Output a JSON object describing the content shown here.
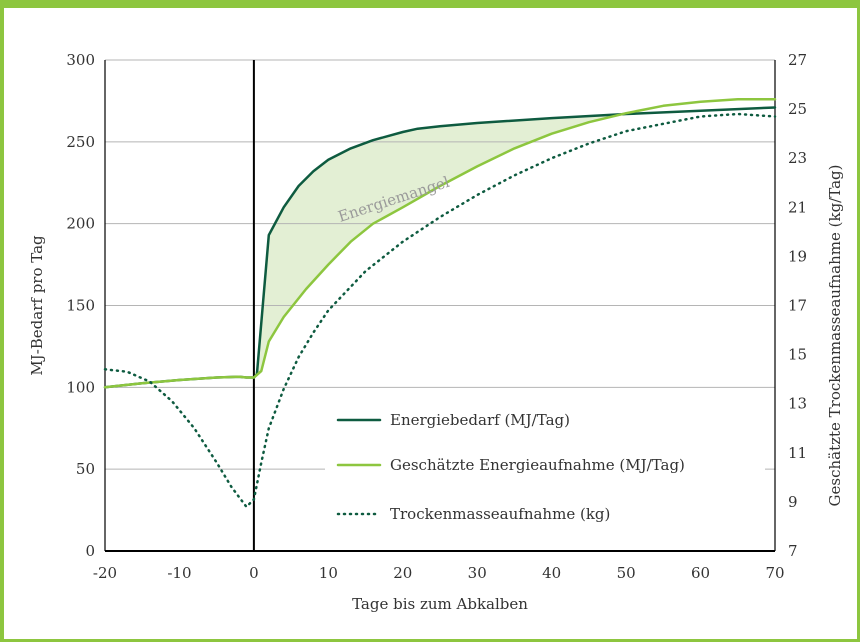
{
  "colors": {
    "frame": "#8dc63f",
    "energy_demand": "#0e5b40",
    "energy_intake": "#8dc63f",
    "dry_matter": "#0e5b40",
    "deficit_fill": "#e3efd4",
    "grid": "#b5b5b5",
    "axis": "#000000"
  },
  "chart_data": {
    "type": "line",
    "xlabel": "Tage bis zum Abkalben",
    "ylabel": "MJ-Bedarf pro Tag",
    "y2label": "Geschätzte Trockenmasseaufnahme (kg/Tag)",
    "xlim": [
      -20,
      70
    ],
    "ylim": [
      0,
      300
    ],
    "y2lim": [
      7,
      27
    ],
    "xticks": [
      "-20",
      "-10",
      "0",
      "10",
      "20",
      "30",
      "40",
      "50",
      "60",
      "70"
    ],
    "yticks": [
      "0",
      "50",
      "100",
      "150",
      "200",
      "250",
      "300"
    ],
    "y2ticks": [
      "7",
      "9",
      "11",
      "13",
      "15",
      "17",
      "19",
      "21",
      "23",
      "25",
      "27"
    ],
    "grid": "horizontal",
    "annotation": "Energiemangel",
    "series": [
      {
        "name": "Energiebedarf (MJ/Tag)",
        "key": "demand",
        "axis": "left",
        "style": "solid",
        "points": [
          [
            -20,
            100
          ],
          [
            -15,
            102.5
          ],
          [
            -10,
            104.5
          ],
          [
            -5,
            106
          ],
          [
            -2,
            106.5
          ],
          [
            -1,
            106
          ],
          [
            0,
            106
          ],
          [
            0.4,
            108
          ],
          [
            2,
            193
          ],
          [
            4,
            210
          ],
          [
            6,
            223
          ],
          [
            8,
            232
          ],
          [
            10,
            239
          ],
          [
            13,
            246
          ],
          [
            16,
            251
          ],
          [
            20,
            256
          ],
          [
            22,
            258
          ],
          [
            25,
            259.5
          ],
          [
            30,
            261.5
          ],
          [
            40,
            264.5
          ],
          [
            50,
            267
          ],
          [
            60,
            269
          ],
          [
            70,
            271
          ]
        ]
      },
      {
        "name": "Geschätzte Energieaufnahme (MJ/Tag)",
        "key": "intake",
        "axis": "left",
        "style": "solid",
        "points": [
          [
            -20,
            100
          ],
          [
            -15,
            102.5
          ],
          [
            -10,
            104.5
          ],
          [
            -5,
            106
          ],
          [
            -2,
            106.5
          ],
          [
            -1,
            106
          ],
          [
            0,
            106
          ],
          [
            1,
            110
          ],
          [
            2,
            128
          ],
          [
            4,
            143
          ],
          [
            7,
            160
          ],
          [
            10,
            175
          ],
          [
            13,
            189
          ],
          [
            16,
            200
          ],
          [
            20,
            210
          ],
          [
            25,
            223
          ],
          [
            30,
            235
          ],
          [
            35,
            246
          ],
          [
            40,
            255
          ],
          [
            45,
            262
          ],
          [
            50,
            267.5
          ],
          [
            55,
            272
          ],
          [
            60,
            274.5
          ],
          [
            65,
            276
          ],
          [
            70,
            276
          ]
        ]
      },
      {
        "name": "Trockenmasseaufnahme (kg)",
        "key": "dmi",
        "axis": "right",
        "style": "dotted",
        "points": [
          [
            -20,
            14.4
          ],
          [
            -17,
            14.3
          ],
          [
            -14,
            13.9
          ],
          [
            -11,
            13.1
          ],
          [
            -8,
            12.0
          ],
          [
            -5,
            10.6
          ],
          [
            -3,
            9.6
          ],
          [
            -1,
            8.8
          ],
          [
            0,
            9.1
          ],
          [
            1,
            10.6
          ],
          [
            2,
            12.0
          ],
          [
            4,
            13.6
          ],
          [
            6,
            14.9
          ],
          [
            8,
            15.9
          ],
          [
            10,
            16.8
          ],
          [
            15,
            18.4
          ],
          [
            20,
            19.6
          ],
          [
            25,
            20.6
          ],
          [
            30,
            21.5
          ],
          [
            35,
            22.3
          ],
          [
            40,
            23.0
          ],
          [
            45,
            23.6
          ],
          [
            50,
            24.1
          ],
          [
            55,
            24.4
          ],
          [
            60,
            24.7
          ],
          [
            65,
            24.8
          ],
          [
            70,
            24.7
          ]
        ]
      }
    ]
  }
}
